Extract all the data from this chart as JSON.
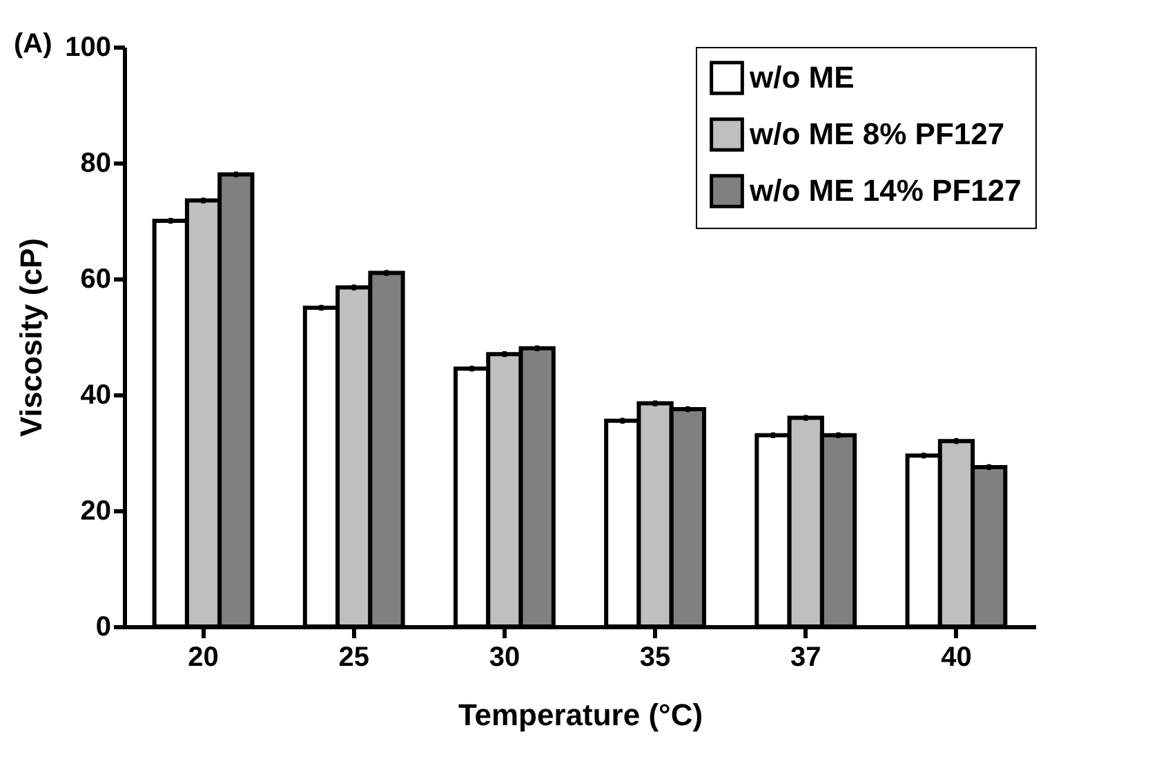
{
  "chart_data": {
    "type": "bar",
    "xlabel": "Temperature (°C)",
    "ylabel": "Viscosity (cP)",
    "annotations": [
      "(A)"
    ],
    "categories": [
      "20",
      "25",
      "30",
      "35",
      "37",
      "40"
    ],
    "series": [
      {
        "name": "w/o ME",
        "color": "#ffffff",
        "values": [
          70,
          55,
          44.5,
          35.5,
          33,
          29.5
        ],
        "errors": [
          0.5,
          0.5,
          0.5,
          0.5,
          0.5,
          0.5
        ]
      },
      {
        "name": "w/o ME 8% PF127",
        "color": "#bfbfbf",
        "values": [
          73.5,
          58.5,
          47,
          38.5,
          36,
          32
        ],
        "errors": [
          0.5,
          0.5,
          0.5,
          0.5,
          0.5,
          0.5
        ]
      },
      {
        "name": "w/o ME 14% PF127",
        "color": "#808080",
        "values": [
          78,
          61,
          48,
          37.5,
          33,
          27.5
        ],
        "errors": [
          0.5,
          0.5,
          0.5,
          0.5,
          0.5,
          0.5
        ]
      }
    ],
    "ylim": [
      0,
      100
    ],
    "yticks": [
      0,
      20,
      40,
      60,
      80,
      100
    ],
    "grid": false,
    "legend": "top right"
  }
}
